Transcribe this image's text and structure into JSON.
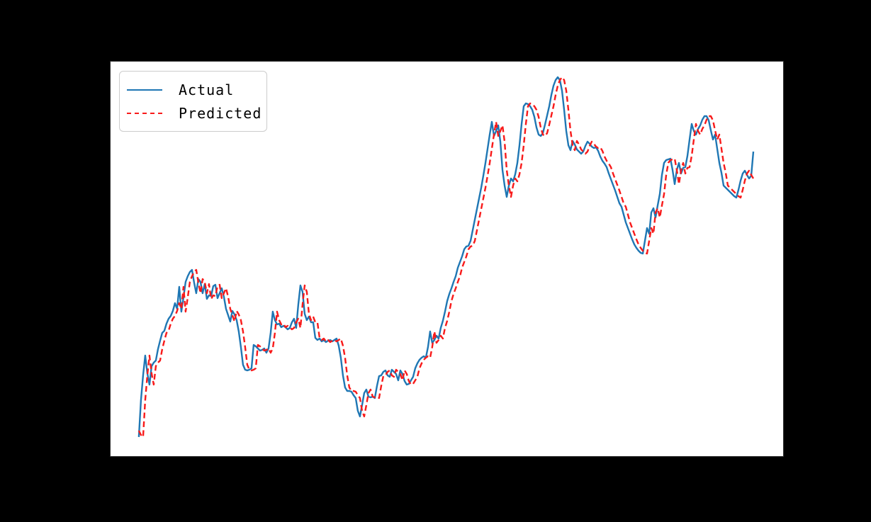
{
  "figure": {
    "background_color": "#000000",
    "plot_background_color": "#ffffff",
    "title_visible": false,
    "tick_labels_visible": false
  },
  "legend": {
    "position": "upper left",
    "items": [
      {
        "label": "Actual",
        "color": "#1f77b4",
        "line_style": "solid"
      },
      {
        "label": "Predicted",
        "color": "#f81a1a",
        "line_style": "dashed"
      }
    ]
  },
  "chart_data": {
    "type": "line",
    "title": "",
    "xlabel": "",
    "ylabel": "",
    "grid": false,
    "legend_position": "upper left",
    "x_unit": "time step index (axis tick labels not visible in screenshot)",
    "y_unit": "value, plot-relative units (axis tick labels not visible in screenshot)",
    "x_start": 0,
    "x_step": 1,
    "xlim": [
      -13.3,
      303.0
    ],
    "ylim": [
      0,
      557
    ],
    "series": [
      {
        "name": "Actual",
        "color": "#1f77b4",
        "line_style": "solid",
        "values": [
          27,
          79,
          114,
          142,
          117,
          101,
          127,
          132,
          135,
          151,
          163,
          174,
          177,
          187,
          194,
          198,
          205,
          216,
          208,
          239,
          204,
          224,
          246,
          254,
          260,
          263,
          245,
          230,
          250,
          246,
          230,
          243,
          222,
          227,
          226,
          240,
          242,
          223,
          230,
          237,
          225,
          208,
          199,
          190,
          205,
          200,
          192,
          176,
          154,
          129,
          122,
          121,
          122,
          124,
          157,
          155,
          152,
          149,
          150,
          152,
          146,
          152,
          174,
          204,
          192,
          186,
          187,
          182,
          184,
          182,
          179,
          181,
          189,
          194,
          181,
          214,
          241,
          232,
          201,
          192,
          197,
          189,
          189,
          167,
          164,
          166,
          162,
          164,
          161,
          163,
          164,
          162,
          164,
          166,
          156,
          139,
          114,
          97,
          92,
          92,
          91,
          86,
          82,
          64,
          56,
          72,
          89,
          94,
          84,
          83,
          84,
          82,
          99,
          113,
          114,
          119,
          121,
          114,
          112,
          122,
          119,
          116,
          107,
          121,
          116,
          106,
          101,
          102,
          107,
          112,
          124,
          131,
          136,
          139,
          141,
          139,
          154,
          176,
          160,
          164,
          170,
          166,
          181,
          191,
          204,
          219,
          229,
          237,
          246,
          254,
          266,
          274,
          282,
          292,
          296,
          297,
          304,
          319,
          334,
          349,
          364,
          379,
          396,
          414,
          434,
          454,
          472,
          452,
          459,
          467,
          444,
          404,
          382,
          366,
          382,
          392,
          388,
          398,
          414,
          439,
          469,
          494,
          498,
          497,
          494,
          489,
          479,
          464,
          454,
          452,
          456,
          468,
          481,
          494,
          510,
          523,
          531,
          535,
          531,
          516,
          489,
          459,
          439,
          432,
          445,
          440,
          433,
          430,
          427,
          430,
          438,
          444,
          441,
          437,
          435,
          436,
          431,
          423,
          417,
          413,
          408,
          399,
          391,
          383,
          375,
          366,
          357,
          352,
          341,
          330,
          322,
          314,
          306,
          299,
          294,
          290,
          287,
          286,
          304,
          322,
          314,
          344,
          350,
          337,
          354,
          370,
          397,
          414,
          418,
          419,
          420,
          404,
          384,
          404,
          414,
          399,
          407,
          408,
          424,
          447,
          469,
          459,
          454,
          462,
          467,
          475,
          480,
          480,
          474,
          460,
          447,
          454,
          434,
          414,
          400,
          382,
          379,
          376,
          373,
          370,
          367,
          365,
          376,
          389,
          399,
          403,
          397,
          392,
          396,
          430
        ]
      },
      {
        "name": "Predicted",
        "color": "#f81a1a",
        "line_style": "dashed",
        "values": [
          36,
          30,
          27,
          79,
          114,
          142,
          117,
          101,
          127,
          132,
          135,
          151,
          163,
          174,
          177,
          187,
          194,
          198,
          205,
          216,
          208,
          239,
          204,
          224,
          246,
          254,
          260,
          263,
          245,
          230,
          250,
          246,
          230,
          243,
          222,
          227,
          226,
          240,
          242,
          223,
          230,
          237,
          225,
          208,
          199,
          190,
          205,
          200,
          192,
          176,
          154,
          129,
          122,
          121,
          122,
          124,
          157,
          155,
          152,
          149,
          150,
          152,
          146,
          152,
          174,
          204,
          192,
          186,
          187,
          182,
          184,
          182,
          179,
          181,
          189,
          194,
          181,
          214,
          241,
          232,
          201,
          192,
          197,
          189,
          189,
          167,
          164,
          166,
          162,
          164,
          161,
          163,
          164,
          162,
          164,
          166,
          156,
          139,
          114,
          97,
          92,
          92,
          91,
          86,
          82,
          64,
          56,
          72,
          89,
          94,
          84,
          83,
          84,
          82,
          99,
          113,
          114,
          119,
          121,
          114,
          112,
          122,
          119,
          116,
          107,
          121,
          116,
          106,
          101,
          102,
          107,
          112,
          124,
          131,
          136,
          139,
          141,
          139,
          154,
          176,
          160,
          164,
          170,
          166,
          181,
          191,
          204,
          219,
          229,
          237,
          246,
          254,
          266,
          274,
          282,
          292,
          296,
          297,
          304,
          319,
          334,
          349,
          364,
          379,
          396,
          414,
          434,
          454,
          472,
          452,
          459,
          467,
          444,
          404,
          382,
          366,
          382,
          392,
          388,
          398,
          414,
          439,
          469,
          494,
          498,
          497,
          494,
          489,
          479,
          464,
          454,
          452,
          456,
          468,
          481,
          494,
          510,
          523,
          531,
          535,
          531,
          516,
          489,
          459,
          439,
          432,
          445,
          440,
          433,
          430,
          427,
          430,
          438,
          444,
          441,
          437,
          435,
          436,
          431,
          423,
          417,
          413,
          408,
          399,
          391,
          383,
          375,
          366,
          357,
          352,
          341,
          330,
          322,
          314,
          306,
          299,
          294,
          290,
          287,
          286,
          304,
          322,
          314,
          344,
          350,
          337,
          354,
          370,
          397,
          414,
          418,
          419,
          420,
          404,
          384,
          404,
          414,
          399,
          407,
          408,
          424,
          447,
          469,
          459,
          454,
          462,
          467,
          475,
          480,
          480,
          474,
          460,
          447,
          454,
          434,
          414,
          400,
          382,
          379,
          376,
          373,
          370,
          367,
          365,
          376,
          389,
          399,
          403,
          397,
          392
        ]
      }
    ]
  }
}
